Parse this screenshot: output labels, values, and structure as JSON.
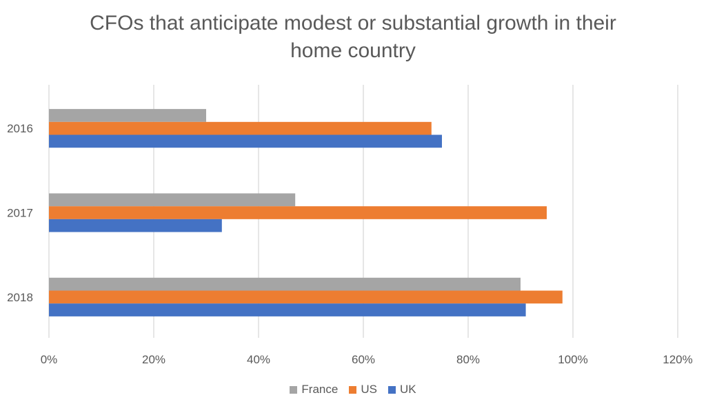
{
  "chart_data": {
    "type": "bar",
    "orientation": "horizontal",
    "title": "CFOs that anticipate modest or substantial growth in their home country",
    "title_lines": [
      "CFOs that anticipate modest or substantial growth in their",
      "home country"
    ],
    "categories": [
      "2016",
      "2017",
      "2018"
    ],
    "series": [
      {
        "name": "France",
        "color": "#A5A5A5",
        "values": [
          0.3,
          0.47,
          0.9
        ]
      },
      {
        "name": "US",
        "color": "#ED7D31",
        "values": [
          0.73,
          0.95,
          0.98
        ]
      },
      {
        "name": "UK",
        "color": "#4472C4",
        "values": [
          0.75,
          0.33,
          0.91
        ]
      }
    ],
    "x_ticks": [
      "0%",
      "20%",
      "40%",
      "60%",
      "80%",
      "100%",
      "120%"
    ],
    "xlim": [
      0,
      1.2
    ],
    "grid": true,
    "legend_position": "bottom",
    "legend_order": [
      "France",
      "US",
      "UK"
    ]
  }
}
